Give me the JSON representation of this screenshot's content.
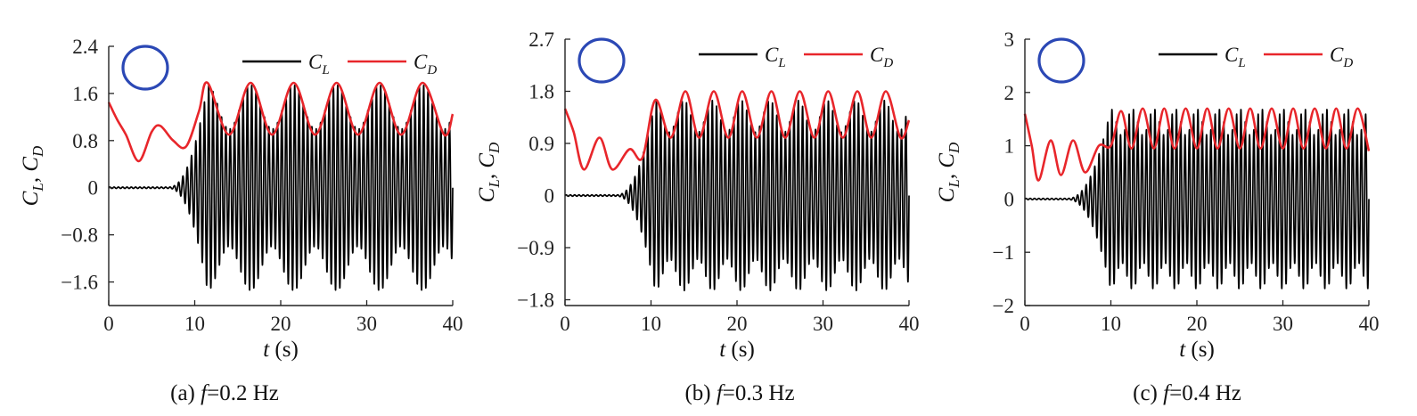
{
  "chart_data": [
    {
      "type": "line",
      "caption_prefix": "(a)",
      "caption_var": "f",
      "caption_rest": "=0.2 Hz",
      "xlabel_var": "t",
      "xlabel_unit": "(s)",
      "ylabel": {
        "a": "C",
        "a_sub": "L",
        "sep": ", ",
        "b": "C",
        "b_sub": "D"
      },
      "xlim": [
        0,
        40
      ],
      "ylim": [
        -2.0,
        2.4
      ],
      "xticks": [
        0,
        10,
        20,
        30,
        40
      ],
      "yticks": [
        -1.6,
        -0.8,
        0,
        0.8,
        1.6,
        2.4
      ],
      "ytick_labels": [
        "−1.6",
        "−0.8",
        "0",
        "0.8",
        "1.6",
        "2.4"
      ],
      "legend_position": "top-right",
      "inset_marker": "circle",
      "series": [
        {
          "name": "C_L",
          "label_main": "C",
          "label_sub": "L",
          "color": "#000000",
          "description": "oscillating lift coefficient",
          "t_onset": 7,
          "t_sat": 11.5,
          "carrier_freq_hz": 2.0,
          "beat_period_s": 5.0,
          "amplitude_range": [
            1.0,
            1.75
          ]
        },
        {
          "name": "C_D",
          "label_main": "C",
          "label_sub": "D",
          "color": "#e8262b",
          "points": [
            [
              0,
              1.45
            ],
            [
              1,
              1.15
            ],
            [
              2,
              0.9
            ],
            [
              3.5,
              0.45
            ],
            [
              5,
              0.95
            ],
            [
              6,
              1.05
            ],
            [
              7.5,
              0.8
            ],
            [
              9,
              0.7
            ],
            [
              10.5,
              1.3
            ],
            [
              11.5,
              1.78
            ],
            [
              14,
              0.9
            ],
            [
              16.5,
              1.78
            ],
            [
              19,
              0.9
            ],
            [
              21.5,
              1.78
            ],
            [
              24,
              0.9
            ],
            [
              26.5,
              1.78
            ],
            [
              29,
              0.9
            ],
            [
              31.5,
              1.78
            ],
            [
              34,
              0.9
            ],
            [
              36.5,
              1.78
            ],
            [
              39,
              0.9
            ],
            [
              40,
              1.25
            ]
          ]
        }
      ]
    },
    {
      "type": "line",
      "caption_prefix": "(b)",
      "caption_var": "f",
      "caption_rest": "=0.3 Hz",
      "xlabel_var": "t",
      "xlabel_unit": "(s)",
      "ylabel": {
        "a": "C",
        "a_sub": "L",
        "sep": ", ",
        "b": "C",
        "b_sub": "D"
      },
      "xlim": [
        0,
        40
      ],
      "ylim": [
        -1.9,
        2.7
      ],
      "xticks": [
        0,
        10,
        20,
        30,
        40
      ],
      "yticks": [
        -1.8,
        -0.9,
        0,
        0.9,
        1.8,
        2.7
      ],
      "ytick_labels": [
        "−1.8",
        "−0.9",
        "0",
        "0.9",
        "1.8",
        "2.7"
      ],
      "legend_position": "top-right",
      "inset_marker": "circle",
      "series": [
        {
          "name": "C_L",
          "label_main": "C",
          "label_sub": "L",
          "color": "#000000",
          "description": "oscillating lift coefficient",
          "t_onset": 6,
          "t_sat": 10.5,
          "carrier_freq_hz": 2.0,
          "beat_period_s": 3.33,
          "amplitude_range": [
            1.1,
            1.65
          ]
        },
        {
          "name": "C_D",
          "label_main": "C",
          "label_sub": "D",
          "color": "#e8262b",
          "points": [
            [
              0,
              1.5
            ],
            [
              1,
              1.1
            ],
            [
              2.2,
              0.45
            ],
            [
              4,
              1.0
            ],
            [
              5.5,
              0.45
            ],
            [
              7.5,
              0.8
            ],
            [
              9,
              0.65
            ],
            [
              10.5,
              1.65
            ],
            [
              12.3,
              1.0
            ],
            [
              14,
              1.8
            ],
            [
              15.6,
              1.0
            ],
            [
              17.3,
              1.8
            ],
            [
              19,
              1.0
            ],
            [
              20.6,
              1.8
            ],
            [
              22.3,
              1.0
            ],
            [
              24,
              1.8
            ],
            [
              25.6,
              1.0
            ],
            [
              27.3,
              1.8
            ],
            [
              29,
              1.0
            ],
            [
              30.6,
              1.8
            ],
            [
              32.3,
              1.0
            ],
            [
              34,
              1.8
            ],
            [
              35.6,
              1.0
            ],
            [
              37.3,
              1.8
            ],
            [
              39,
              1.0
            ],
            [
              40,
              1.3
            ]
          ]
        }
      ]
    },
    {
      "type": "line",
      "caption_prefix": "(c)",
      "caption_var": "f",
      "caption_rest": "=0.4 Hz",
      "xlabel_var": "t",
      "xlabel_unit": "(s)",
      "ylabel": {
        "a": "C",
        "a_sub": "L",
        "sep": ", ",
        "b": "C",
        "b_sub": "D"
      },
      "xlim": [
        0,
        40
      ],
      "ylim": [
        -2,
        3
      ],
      "xticks": [
        0,
        10,
        20,
        30,
        40
      ],
      "yticks": [
        -2,
        -1,
        0,
        1,
        2,
        3
      ],
      "ytick_labels": [
        "−2",
        "−1",
        "0",
        "1",
        "2",
        "3"
      ],
      "legend_position": "top-right",
      "inset_marker": "circle",
      "series": [
        {
          "name": "C_L",
          "label_main": "C",
          "label_sub": "L",
          "color": "#000000",
          "description": "oscillating lift coefficient",
          "t_onset": 5,
          "t_sat": 10,
          "carrier_freq_hz": 2.0,
          "beat_period_s": 2.5,
          "amplitude_range": [
            1.2,
            1.7
          ]
        },
        {
          "name": "C_D",
          "label_main": "C",
          "label_sub": "D",
          "color": "#e8262b",
          "points": [
            [
              0,
              1.6
            ],
            [
              0.8,
              1.0
            ],
            [
              1.6,
              0.35
            ],
            [
              3,
              1.1
            ],
            [
              4.2,
              0.45
            ],
            [
              5.6,
              1.1
            ],
            [
              7,
              0.5
            ],
            [
              8.6,
              1.0
            ],
            [
              10,
              1.0
            ],
            [
              11.2,
              1.65
            ],
            [
              12.4,
              0.95
            ],
            [
              13.7,
              1.7
            ],
            [
              15,
              0.95
            ],
            [
              16.2,
              1.7
            ],
            [
              17.4,
              0.95
            ],
            [
              18.7,
              1.7
            ],
            [
              20,
              0.95
            ],
            [
              21.2,
              1.7
            ],
            [
              22.4,
              0.95
            ],
            [
              23.7,
              1.7
            ],
            [
              25,
              0.95
            ],
            [
              26.2,
              1.7
            ],
            [
              27.4,
              0.95
            ],
            [
              28.7,
              1.7
            ],
            [
              30,
              0.95
            ],
            [
              31.2,
              1.7
            ],
            [
              32.4,
              0.95
            ],
            [
              33.7,
              1.7
            ],
            [
              35,
              0.95
            ],
            [
              36.2,
              1.7
            ],
            [
              37.4,
              0.95
            ],
            [
              38.7,
              1.7
            ],
            [
              40,
              0.9
            ]
          ]
        }
      ]
    }
  ]
}
